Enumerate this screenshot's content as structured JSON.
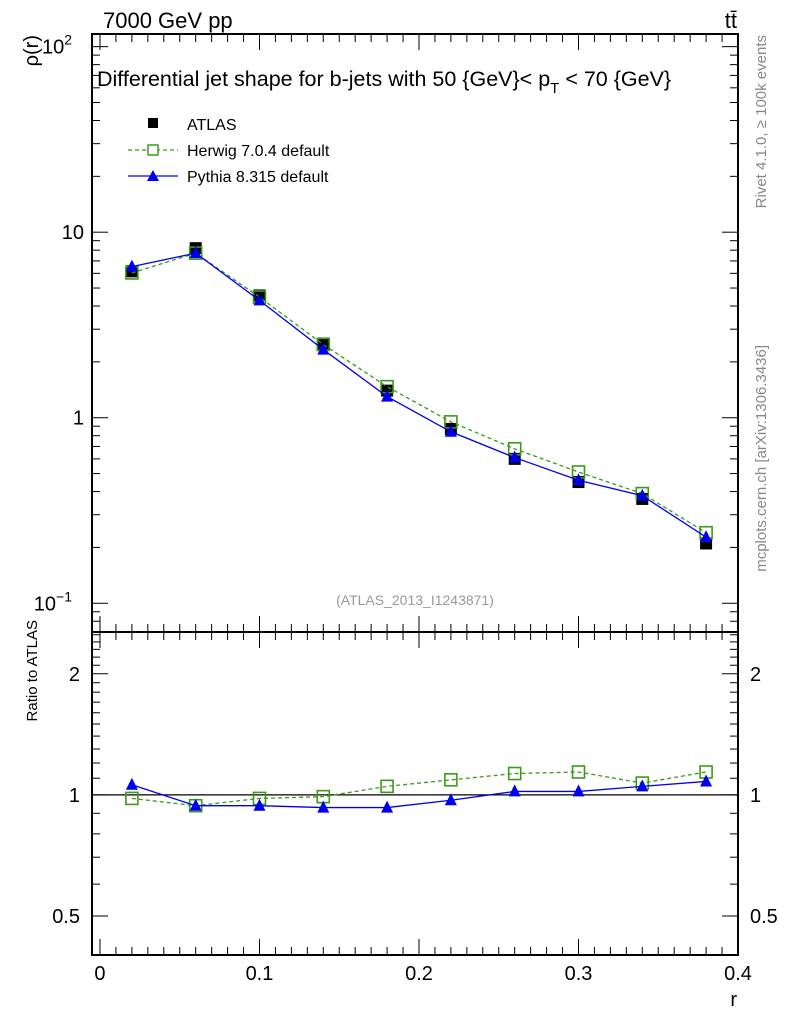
{
  "header": {
    "left": "7000 GeV pp",
    "right": "tt̄"
  },
  "side_labels": {
    "rivet": "Rivet 4.1.0, ≥ 100k events",
    "mcplots": "mcplots.cern.ch [arXiv:1306.3436]"
  },
  "watermark": "(ATLAS_2013_I1243871)",
  "colors": {
    "atlas": "#000000",
    "herwig": "#3a9a1a",
    "pythia": "#0000ee"
  },
  "chart_data": [
    {
      "type": "line",
      "title": "Differential jet shape for b-jets with 50 {GeV}< p_T < 70 {GeV}",
      "title_main": "Differential jet shape for b-jets with 50 {GeV}< p",
      "title_sub": "T",
      "title_end": " < 70 {GeV}",
      "xlabel": "r",
      "ylabel": "ρ(r)",
      "yscale": "log",
      "xlim": [
        -0.005,
        0.4
      ],
      "ylim": [
        0.07,
        117
      ],
      "xticks": [
        "0",
        "0.1",
        "0.2",
        "0.3",
        "0.4"
      ],
      "xtick_values": [
        0,
        0.1,
        0.2,
        0.3,
        0.4
      ],
      "yticks": [
        {
          "base": "10",
          "exp": "2",
          "value": 100
        },
        {
          "base": "10",
          "exp": "",
          "value": 10
        },
        {
          "base": "1",
          "exp": "",
          "value": 1
        },
        {
          "base": "10",
          "exp": "−1",
          "value": 0.1
        }
      ],
      "legend_position": "top-left",
      "x": [
        0.02,
        0.06,
        0.1,
        0.14,
        0.18,
        0.22,
        0.26,
        0.3,
        0.34,
        0.38
      ],
      "series": [
        {
          "name": "ATLAS",
          "values": [
            6.15,
            8.2,
            4.56,
            2.51,
            1.4,
            0.87,
            0.6,
            0.45,
            0.365,
            0.21
          ]
        },
        {
          "name": "Herwig 7.0.4 default",
          "values": [
            6.03,
            7.71,
            4.47,
            2.48,
            1.47,
            0.95,
            0.68,
            0.51,
            0.39,
            0.24
          ]
        },
        {
          "name": "Pythia 8.315 default",
          "values": [
            6.52,
            7.71,
            4.29,
            2.33,
            1.3,
            0.84,
            0.61,
            0.46,
            0.38,
            0.227
          ]
        }
      ]
    },
    {
      "type": "line",
      "ylabel": "Ratio to ATLAS",
      "yscale": "log",
      "ylim": [
        0.4,
        2.54
      ],
      "yticks": [
        "0.5",
        "1",
        "2"
      ],
      "ytick_values": [
        0.5,
        1,
        2
      ],
      "x": [
        0.02,
        0.06,
        0.1,
        0.14,
        0.18,
        0.22,
        0.26,
        0.3,
        0.34,
        0.38
      ],
      "series": [
        {
          "name": "Herwig 7.0.4 default",
          "values": [
            0.98,
            0.94,
            0.98,
            0.99,
            1.05,
            1.09,
            1.13,
            1.14,
            1.07,
            1.14
          ]
        },
        {
          "name": "Pythia 8.315 default",
          "values": [
            1.06,
            0.94,
            0.94,
            0.93,
            0.93,
            0.97,
            1.02,
            1.02,
            1.05,
            1.08
          ]
        }
      ]
    }
  ]
}
